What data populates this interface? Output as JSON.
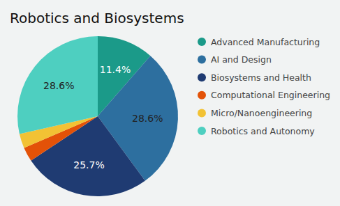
{
  "chart_data": {
    "type": "pie",
    "title": "Robotics and Biosystems",
    "categories": [
      "Advanced Manufacturing",
      "AI and Design",
      "Biosystems and Health",
      "Computational Engineering",
      "Micro/Nanoengineering",
      "Robotics and Autonomy"
    ],
    "values": [
      11.4,
      28.6,
      25.7,
      2.9,
      2.9,
      28.6
    ],
    "value_labels": [
      "11.4%",
      "28.6%",
      "25.7%",
      null,
      null,
      "28.6%"
    ],
    "colors": [
      "#1b9a89",
      "#2d6f9f",
      "#1f3b72",
      "#e35208",
      "#f2c234",
      "#4ecfc0"
    ],
    "data_labels": true,
    "legend": "right"
  }
}
